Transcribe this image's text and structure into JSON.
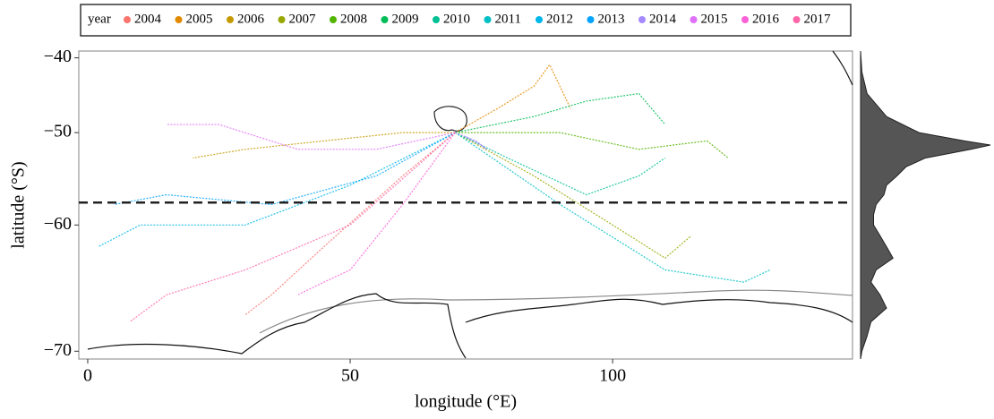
{
  "chart_data": {
    "type": "track-map",
    "x_label": "longitude (°E)",
    "y_label": "latitude (°S)",
    "legend_title": "year",
    "legend_position": "top",
    "xlim": [
      -1.7,
      145.7
    ],
    "xticks": [
      0,
      50,
      100
    ],
    "ylim": [
      -70.5,
      -39
    ],
    "y_scale": "mercator",
    "yticks": [
      {
        "value": -40,
        "label": "−40"
      },
      {
        "value": -50,
        "label": "−50"
      },
      {
        "value": -60,
        "label": "−60"
      },
      {
        "value": -70,
        "label": "−70"
      }
    ],
    "hline": -57.8,
    "series": [
      {
        "name": "2004",
        "color": "#F8766D",
        "x": [
          70,
          60,
          45,
          35,
          30
        ],
        "values": [
          -50,
          -55,
          -62,
          -66,
          -67.5
        ]
      },
      {
        "name": "2005",
        "color": "#E38900",
        "x": [
          70,
          78,
          85,
          88,
          92
        ],
        "values": [
          -50,
          -47,
          -44,
          -41,
          -47
        ]
      },
      {
        "name": "2006",
        "color": "#C49A00",
        "x": [
          70,
          60,
          45,
          30,
          20
        ],
        "values": [
          -50,
          -50,
          -51,
          -52,
          -53
        ]
      },
      {
        "name": "2007",
        "color": "#99A800",
        "x": [
          70,
          85,
          100,
          110,
          115
        ],
        "values": [
          -50,
          -55,
          -60,
          -63,
          -61
        ]
      },
      {
        "name": "2008",
        "color": "#53B400",
        "x": [
          70,
          90,
          105,
          118,
          122
        ],
        "values": [
          -50,
          -50,
          -52,
          -51,
          -53
        ]
      },
      {
        "name": "2009",
        "color": "#00BC56",
        "x": [
          70,
          85,
          95,
          105,
          110
        ],
        "values": [
          -50,
          -48,
          -46,
          -45,
          -49
        ]
      },
      {
        "name": "2010",
        "color": "#00C094",
        "x": [
          70,
          80,
          95,
          105,
          110
        ],
        "values": [
          -50,
          -53,
          -57,
          -55,
          -53
        ]
      },
      {
        "name": "2011",
        "color": "#00BFC4",
        "x": [
          70,
          90,
          110,
          125,
          130
        ],
        "values": [
          -50,
          -58,
          -64,
          -65,
          -64
        ]
      },
      {
        "name": "2012",
        "color": "#00B6EB",
        "x": [
          70,
          50,
          30,
          10,
          2
        ],
        "values": [
          -50,
          -56,
          -60,
          -60,
          -62
        ]
      },
      {
        "name": "2013",
        "color": "#06A4FF",
        "x": [
          70,
          55,
          35,
          15,
          5
        ],
        "values": [
          -50,
          -55,
          -58,
          -57,
          -58
        ]
      },
      {
        "name": "2014",
        "color": "#A58AFF",
        "x": [
          70,
          74,
          76,
          75,
          72
        ],
        "values": [
          -50,
          -51,
          -52,
          -51.5,
          -50.5
        ]
      },
      {
        "name": "2015",
        "color": "#DF70F8",
        "x": [
          70,
          55,
          40,
          25,
          15
        ],
        "values": [
          -50,
          -52,
          -52,
          -49,
          -49
        ]
      },
      {
        "name": "2016",
        "color": "#FB61D7",
        "x": [
          70,
          60,
          50,
          45,
          40
        ],
        "values": [
          -50,
          -58,
          -64,
          -65,
          -66
        ]
      },
      {
        "name": "2017",
        "color": "#FF66A8",
        "x": [
          70,
          50,
          30,
          15,
          8
        ],
        "values": [
          -50,
          -60,
          -64,
          -66,
          -68
        ]
      }
    ],
    "density": {
      "color": "#555555",
      "lat": [
        -39,
        -42,
        -45,
        -48,
        -50,
        -51,
        -51.5,
        -52,
        -53,
        -54,
        -55,
        -56,
        -57,
        -58,
        -59,
        -60,
        -61,
        -62,
        -63,
        -64,
        -65,
        -66,
        -67,
        -68,
        -69,
        -70,
        -70.5
      ],
      "values": [
        0,
        0.01,
        0.05,
        0.2,
        0.45,
        0.8,
        1.0,
        0.85,
        0.5,
        0.35,
        0.28,
        0.2,
        0.18,
        0.12,
        0.1,
        0.1,
        0.15,
        0.2,
        0.25,
        0.12,
        0.08,
        0.15,
        0.2,
        0.08,
        0.05,
        0.01,
        0
      ]
    }
  }
}
